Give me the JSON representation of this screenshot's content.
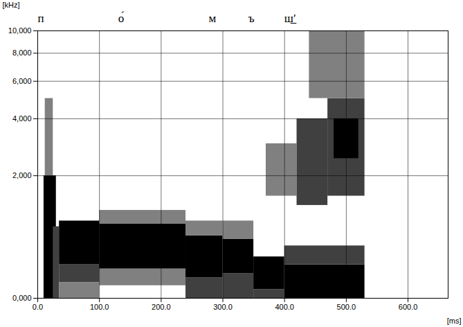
{
  "chart_data": {
    "type": "spectrogram",
    "xlabel": "[ms]",
    "ylabel": "[kHz]",
    "xlim": [
      0,
      665
    ],
    "ylim": [
      0,
      10
    ],
    "xticks": [
      {
        "value": 0,
        "label": "0.0"
      },
      {
        "value": 100,
        "label": "100.0"
      },
      {
        "value": 200,
        "label": "200.0"
      },
      {
        "value": 300,
        "label": "300.0"
      },
      {
        "value": 400,
        "label": "400.0"
      },
      {
        "value": 500,
        "label": "500.0"
      },
      {
        "value": 600,
        "label": "600.0"
      }
    ],
    "yticks": [
      {
        "value": 0,
        "label": "0,000"
      },
      {
        "value": 2,
        "label": "2,000"
      },
      {
        "value": 4,
        "label": "4,000"
      },
      {
        "value": 6,
        "label": "6,000"
      },
      {
        "value": 8,
        "label": "8,000"
      },
      {
        "value": 10,
        "label": "10,000"
      }
    ],
    "log": "y",
    "grid": true,
    "color": "#000000",
    "annotations": [
      {
        "text": "п",
        "x": 5
      },
      {
        "text": "о́",
        "x": 135
      },
      {
        "text": "м",
        "x": 283
      },
      {
        "text": "ъ",
        "x": 346
      },
      {
        "text": "ш̲′",
        "x": 409
      }
    ],
    "cells": {
      "t_start": [
        10,
        12,
        25,
        35,
        35,
        35,
        100,
        100,
        100,
        240,
        240,
        240,
        300,
        300,
        300,
        350,
        350,
        400,
        400,
        370,
        420,
        470,
        480,
        440
      ],
      "t_end": [
        30,
        25,
        35,
        100,
        100,
        100,
        240,
        240,
        240,
        300,
        300,
        300,
        350,
        350,
        350,
        400,
        400,
        530,
        530,
        420,
        470,
        530,
        520,
        530
      ],
      "f_low": [
        0,
        2,
        0,
        0.35,
        0.15,
        0,
        0.3,
        0.12,
        0.95,
        0.2,
        0.75,
        0,
        0.25,
        0,
        0.7,
        0.08,
        0,
        0,
        0.35,
        1.5,
        1.3,
        1.5,
        2.5,
        5
      ],
      "f_high": [
        2,
        5,
        0.9,
        1,
        0.35,
        0.15,
        0.95,
        0.3,
        1.2,
        0.75,
        1,
        0.2,
        0.7,
        0.25,
        1,
        0.45,
        0.08,
        0.35,
        0.6,
        3,
        4,
        5,
        4,
        10
      ],
      "level": [
        3,
        1,
        2,
        3,
        2,
        1,
        3,
        1,
        1,
        3,
        1,
        2,
        3,
        2,
        1,
        3,
        2,
        3,
        2,
        1,
        2,
        2,
        3,
        1
      ]
    }
  }
}
